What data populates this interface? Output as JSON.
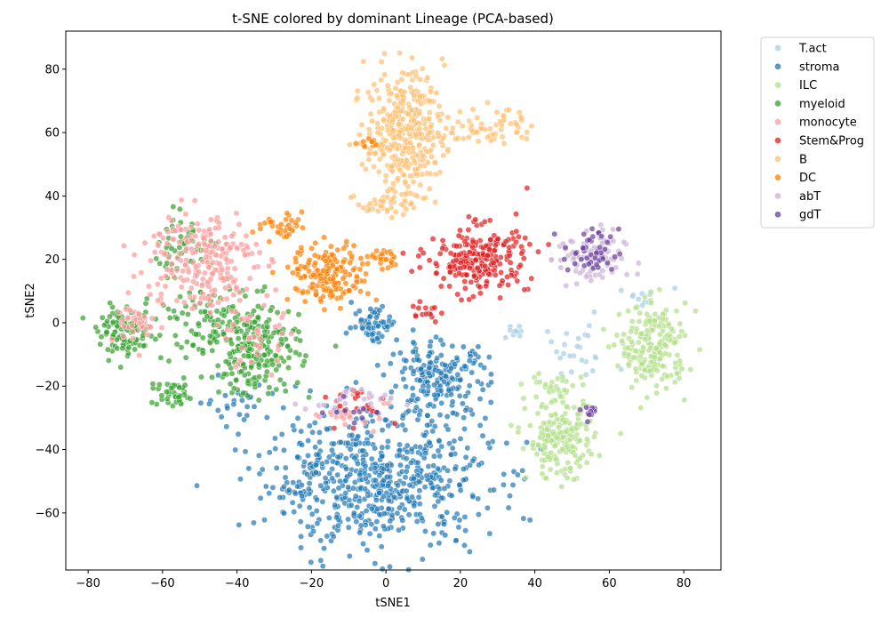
{
  "chart_data": {
    "type": "scatter",
    "title": "t-SNE colored by dominant Lineage (PCA-based)",
    "xlabel": "tSNE1",
    "ylabel": "tSNE2",
    "xlim": [
      -86,
      90
    ],
    "ylim": [
      -78,
      92
    ],
    "xticks": [
      -80,
      -60,
      -40,
      -20,
      0,
      20,
      40,
      60,
      80
    ],
    "yticks": [
      -60,
      -40,
      -20,
      0,
      20,
      40,
      60,
      80
    ],
    "xtick_labels": [
      "−80",
      "−60",
      "−40",
      "−20",
      "0",
      "20",
      "40",
      "60",
      "80"
    ],
    "ytick_labels": [
      "−60",
      "−40",
      "−20",
      "0",
      "20",
      "40",
      "60",
      "80"
    ],
    "grid": false,
    "legend_position": "outside-right",
    "series": [
      {
        "name": "T.act",
        "color": "#a6cee3",
        "clusters": [
          {
            "center": [
              35,
              -3
            ],
            "spread": [
              3,
              1.5
            ],
            "count": 10
          },
          {
            "center": [
              50,
              -10
            ],
            "spread": [
              8,
              6
            ],
            "count": 25
          },
          {
            "center": [
              70,
              8
            ],
            "spread": [
              5,
              2
            ],
            "count": 10
          }
        ]
      },
      {
        "name": "stroma",
        "color": "#1f78b4",
        "clusters": [
          {
            "center": [
              -2,
              -50
            ],
            "spread": [
              20,
              14
            ],
            "count": 600
          },
          {
            "center": [
              14,
              -18
            ],
            "spread": [
              9,
              8
            ],
            "count": 200
          },
          {
            "center": [
              -3,
              0
            ],
            "spread": [
              4,
              4
            ],
            "count": 60
          },
          {
            "center": [
              -40,
              -25
            ],
            "spread": [
              6,
              4
            ],
            "count": 25
          },
          {
            "center": [
              -20,
              -45
            ],
            "spread": [
              6,
              6
            ],
            "count": 25
          }
        ]
      },
      {
        "name": "ILC",
        "color": "#b2df89",
        "clusters": [
          {
            "center": [
              72,
              -8
            ],
            "spread": [
              6,
              9
            ],
            "count": 200
          },
          {
            "center": [
              47,
              -37
            ],
            "spread": [
              6,
              8
            ],
            "count": 200
          },
          {
            "center": [
              45,
              -20
            ],
            "spread": [
              5,
              3
            ],
            "count": 25
          }
        ]
      },
      {
        "name": "myeloid",
        "color": "#33a02c",
        "clusters": [
          {
            "center": [
              -35,
              -8
            ],
            "spread": [
              8,
              10
            ],
            "count": 220
          },
          {
            "center": [
              -70,
              -3
            ],
            "spread": [
              5,
              5
            ],
            "count": 100
          },
          {
            "center": [
              -57,
              -23
            ],
            "spread": [
              4,
              3
            ],
            "count": 40
          },
          {
            "center": [
              -55,
              25
            ],
            "spread": [
              6,
              6
            ],
            "count": 50
          },
          {
            "center": [
              -50,
              0
            ],
            "spread": [
              8,
              8
            ],
            "count": 80
          }
        ]
      },
      {
        "name": "monocyte",
        "color": "#fb9a99",
        "clusters": [
          {
            "center": [
              -50,
              20
            ],
            "spread": [
              10,
              11
            ],
            "count": 230
          },
          {
            "center": [
              -65,
              0
            ],
            "spread": [
              5,
              5
            ],
            "count": 40
          },
          {
            "center": [
              -35,
              -5
            ],
            "spread": [
              5,
              8
            ],
            "count": 40
          },
          {
            "center": [
              -10,
              -28
            ],
            "spread": [
              6,
              3
            ],
            "count": 25
          }
        ]
      },
      {
        "name": "Stem&Prog",
        "color": "#e31a1c",
        "clusters": [
          {
            "center": [
              25,
              20
            ],
            "spread": [
              9,
              7
            ],
            "count": 230
          },
          {
            "center": [
              10,
              4
            ],
            "spread": [
              3,
              2
            ],
            "count": 15
          },
          {
            "center": [
              -8,
              -25
            ],
            "spread": [
              6,
              4
            ],
            "count": 20
          }
        ]
      },
      {
        "name": "B",
        "color": "#fdbf6f",
        "clusters": [
          {
            "center": [
              5,
              60
            ],
            "spread": [
              7,
              13
            ],
            "count": 360
          },
          {
            "center": [
              28,
              62
            ],
            "spread": [
              8,
              4
            ],
            "count": 60
          },
          {
            "center": [
              0,
              38
            ],
            "spread": [
              5,
              3
            ],
            "count": 40
          }
        ]
      },
      {
        "name": "DC",
        "color": "#ff7f00",
        "clusters": [
          {
            "center": [
              -15,
              15
            ],
            "spread": [
              7,
              6
            ],
            "count": 180
          },
          {
            "center": [
              0,
              20
            ],
            "spread": [
              3,
              2
            ],
            "count": 25
          },
          {
            "center": [
              -28,
              30
            ],
            "spread": [
              5,
              3
            ],
            "count": 35
          },
          {
            "center": [
              -5,
              57
            ],
            "spread": [
              2,
              2
            ],
            "count": 10
          }
        ]
      },
      {
        "name": "abT",
        "color": "#cab2d6",
        "clusters": [
          {
            "center": [
              55,
              20
            ],
            "spread": [
              6,
              6
            ],
            "count": 90
          },
          {
            "center": [
              -10,
              -25
            ],
            "spread": [
              8,
              3
            ],
            "count": 25
          }
        ]
      },
      {
        "name": "gdT",
        "color": "#6a3d9a",
        "clusters": [
          {
            "center": [
              55,
              22
            ],
            "spread": [
              5,
              5
            ],
            "count": 45
          },
          {
            "center": [
              55,
              -28
            ],
            "spread": [
              2,
              2
            ],
            "count": 10
          },
          {
            "center": [
              -8,
              -28
            ],
            "spread": [
              5,
              3
            ],
            "count": 10
          }
        ]
      }
    ]
  }
}
